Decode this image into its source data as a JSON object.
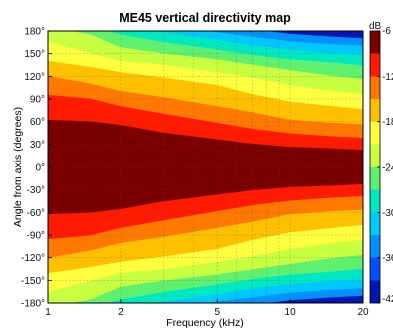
{
  "chart_data": {
    "type": "heatmap",
    "title": "ME45 vertical directivity map",
    "xlabel": "Frequency (kHz)",
    "ylabel": "Angle from axis (degrees)",
    "x_scale": "log",
    "xlim": [
      1,
      20
    ],
    "ylim": [
      -180,
      180
    ],
    "x_ticks": [
      1,
      2,
      5,
      10,
      20
    ],
    "y_ticks": [
      -180,
      -150,
      -120,
      -90,
      -60,
      -30,
      0,
      30,
      60,
      90,
      120,
      150,
      180
    ],
    "x_tick_labels": [
      "1",
      "2",
      "5",
      "10",
      "20"
    ],
    "y_tick_labels": [
      "-180°",
      "-150°",
      "-120°",
      "-90°",
      "-60°",
      "-30°",
      "0°",
      "30°",
      "60°",
      "90°",
      "120°",
      "150°",
      "180°"
    ],
    "grid": true,
    "colorbar": {
      "unit_label": "dB",
      "range": [
        -42,
        -6
      ],
      "ticks": [
        -6,
        -12,
        -18,
        -24,
        -30,
        -36,
        -42
      ],
      "tick_labels": [
        "-6",
        "-12",
        "-18",
        "-24",
        "-30",
        "-36",
        "-42"
      ],
      "levels": [
        {
          "from": -6,
          "to": -9,
          "color": "#7a0000"
        },
        {
          "from": -9,
          "to": -12,
          "color": "#ff1a00"
        },
        {
          "from": -12,
          "to": -15,
          "color": "#ff7800"
        },
        {
          "from": -15,
          "to": -18,
          "color": "#ffc000"
        },
        {
          "from": -18,
          "to": -21,
          "color": "#ffff40"
        },
        {
          "from": -21,
          "to": -24,
          "color": "#c8ff40"
        },
        {
          "from": -24,
          "to": -27,
          "color": "#60f070"
        },
        {
          "from": -27,
          "to": -30,
          "color": "#00e8c0"
        },
        {
          "from": -30,
          "to": -33,
          "color": "#00c8ff"
        },
        {
          "from": -33,
          "to": -36,
          "color": "#0090ff"
        },
        {
          "from": -36,
          "to": -39,
          "color": "#0050ff"
        },
        {
          "from": -39,
          "to": -42,
          "color": "#0018b0"
        }
      ]
    },
    "contour_boundaries": [
      {
        "level": -9,
        "angle_deg_by_freq_khz": [
          [
            1,
            62
          ],
          [
            1.5,
            60
          ],
          [
            2,
            55
          ],
          [
            3,
            45
          ],
          [
            5,
            36
          ],
          [
            7,
            30
          ],
          [
            10,
            26
          ],
          [
            15,
            24
          ],
          [
            20,
            22
          ]
        ]
      },
      {
        "level": -12,
        "angle_deg_by_freq_khz": [
          [
            1,
            95
          ],
          [
            1.5,
            90
          ],
          [
            2,
            80
          ],
          [
            3,
            70
          ],
          [
            5,
            58
          ],
          [
            7,
            50
          ],
          [
            10,
            44
          ],
          [
            15,
            40
          ],
          [
            20,
            38
          ]
        ]
      },
      {
        "level": -15,
        "angle_deg_by_freq_khz": [
          [
            1,
            120
          ],
          [
            1.5,
            110
          ],
          [
            2,
            100
          ],
          [
            3,
            92
          ],
          [
            5,
            80
          ],
          [
            7,
            72
          ],
          [
            10,
            62
          ],
          [
            15,
            58
          ],
          [
            20,
            56
          ]
        ]
      },
      {
        "level": -18,
        "angle_deg_by_freq_khz": [
          [
            1,
            140
          ],
          [
            1.5,
            132
          ],
          [
            2,
            125
          ],
          [
            3,
            118
          ],
          [
            5,
            108
          ],
          [
            7,
            96
          ],
          [
            10,
            86
          ],
          [
            15,
            80
          ],
          [
            20,
            76
          ]
        ]
      },
      {
        "level": -21,
        "angle_deg_by_freq_khz": [
          [
            1,
            165
          ],
          [
            1.5,
            150
          ],
          [
            2,
            140
          ],
          [
            3,
            135
          ],
          [
            5,
            125
          ],
          [
            7,
            118
          ],
          [
            10,
            108
          ],
          [
            15,
            100
          ],
          [
            20,
            96
          ]
        ]
      },
      {
        "level": -24,
        "angle_deg_by_freq_khz": [
          [
            1,
            185
          ],
          [
            1.5,
            175
          ],
          [
            2,
            158
          ],
          [
            3,
            150
          ],
          [
            5,
            142
          ],
          [
            7,
            135
          ],
          [
            10,
            128
          ],
          [
            15,
            120
          ],
          [
            20,
            116
          ]
        ]
      },
      {
        "level": -27,
        "angle_deg_by_freq_khz": [
          [
            1,
            185
          ],
          [
            1.5,
            185
          ],
          [
            2,
            175
          ],
          [
            3,
            165
          ],
          [
            5,
            155
          ],
          [
            7,
            148
          ],
          [
            10,
            142
          ],
          [
            15,
            138
          ],
          [
            20,
            134
          ]
        ]
      },
      {
        "level": -30,
        "angle_deg_by_freq_khz": [
          [
            1,
            185
          ],
          [
            1.5,
            185
          ],
          [
            2,
            185
          ],
          [
            3,
            178
          ],
          [
            5,
            168
          ],
          [
            7,
            160
          ],
          [
            10,
            155
          ],
          [
            15,
            150
          ],
          [
            20,
            148
          ]
        ]
      },
      {
        "level": -33,
        "angle_deg_by_freq_khz": [
          [
            1,
            185
          ],
          [
            1.5,
            185
          ],
          [
            2,
            185
          ],
          [
            3,
            185
          ],
          [
            5,
            178
          ],
          [
            7,
            172
          ],
          [
            10,
            166
          ],
          [
            15,
            162
          ],
          [
            20,
            160
          ]
        ]
      },
      {
        "level": -36,
        "angle_deg_by_freq_khz": [
          [
            1,
            185
          ],
          [
            1.5,
            185
          ],
          [
            2,
            185
          ],
          [
            3,
            185
          ],
          [
            5,
            185
          ],
          [
            7,
            182
          ],
          [
            10,
            176
          ],
          [
            15,
            172
          ],
          [
            20,
            170
          ]
        ]
      }
    ]
  }
}
